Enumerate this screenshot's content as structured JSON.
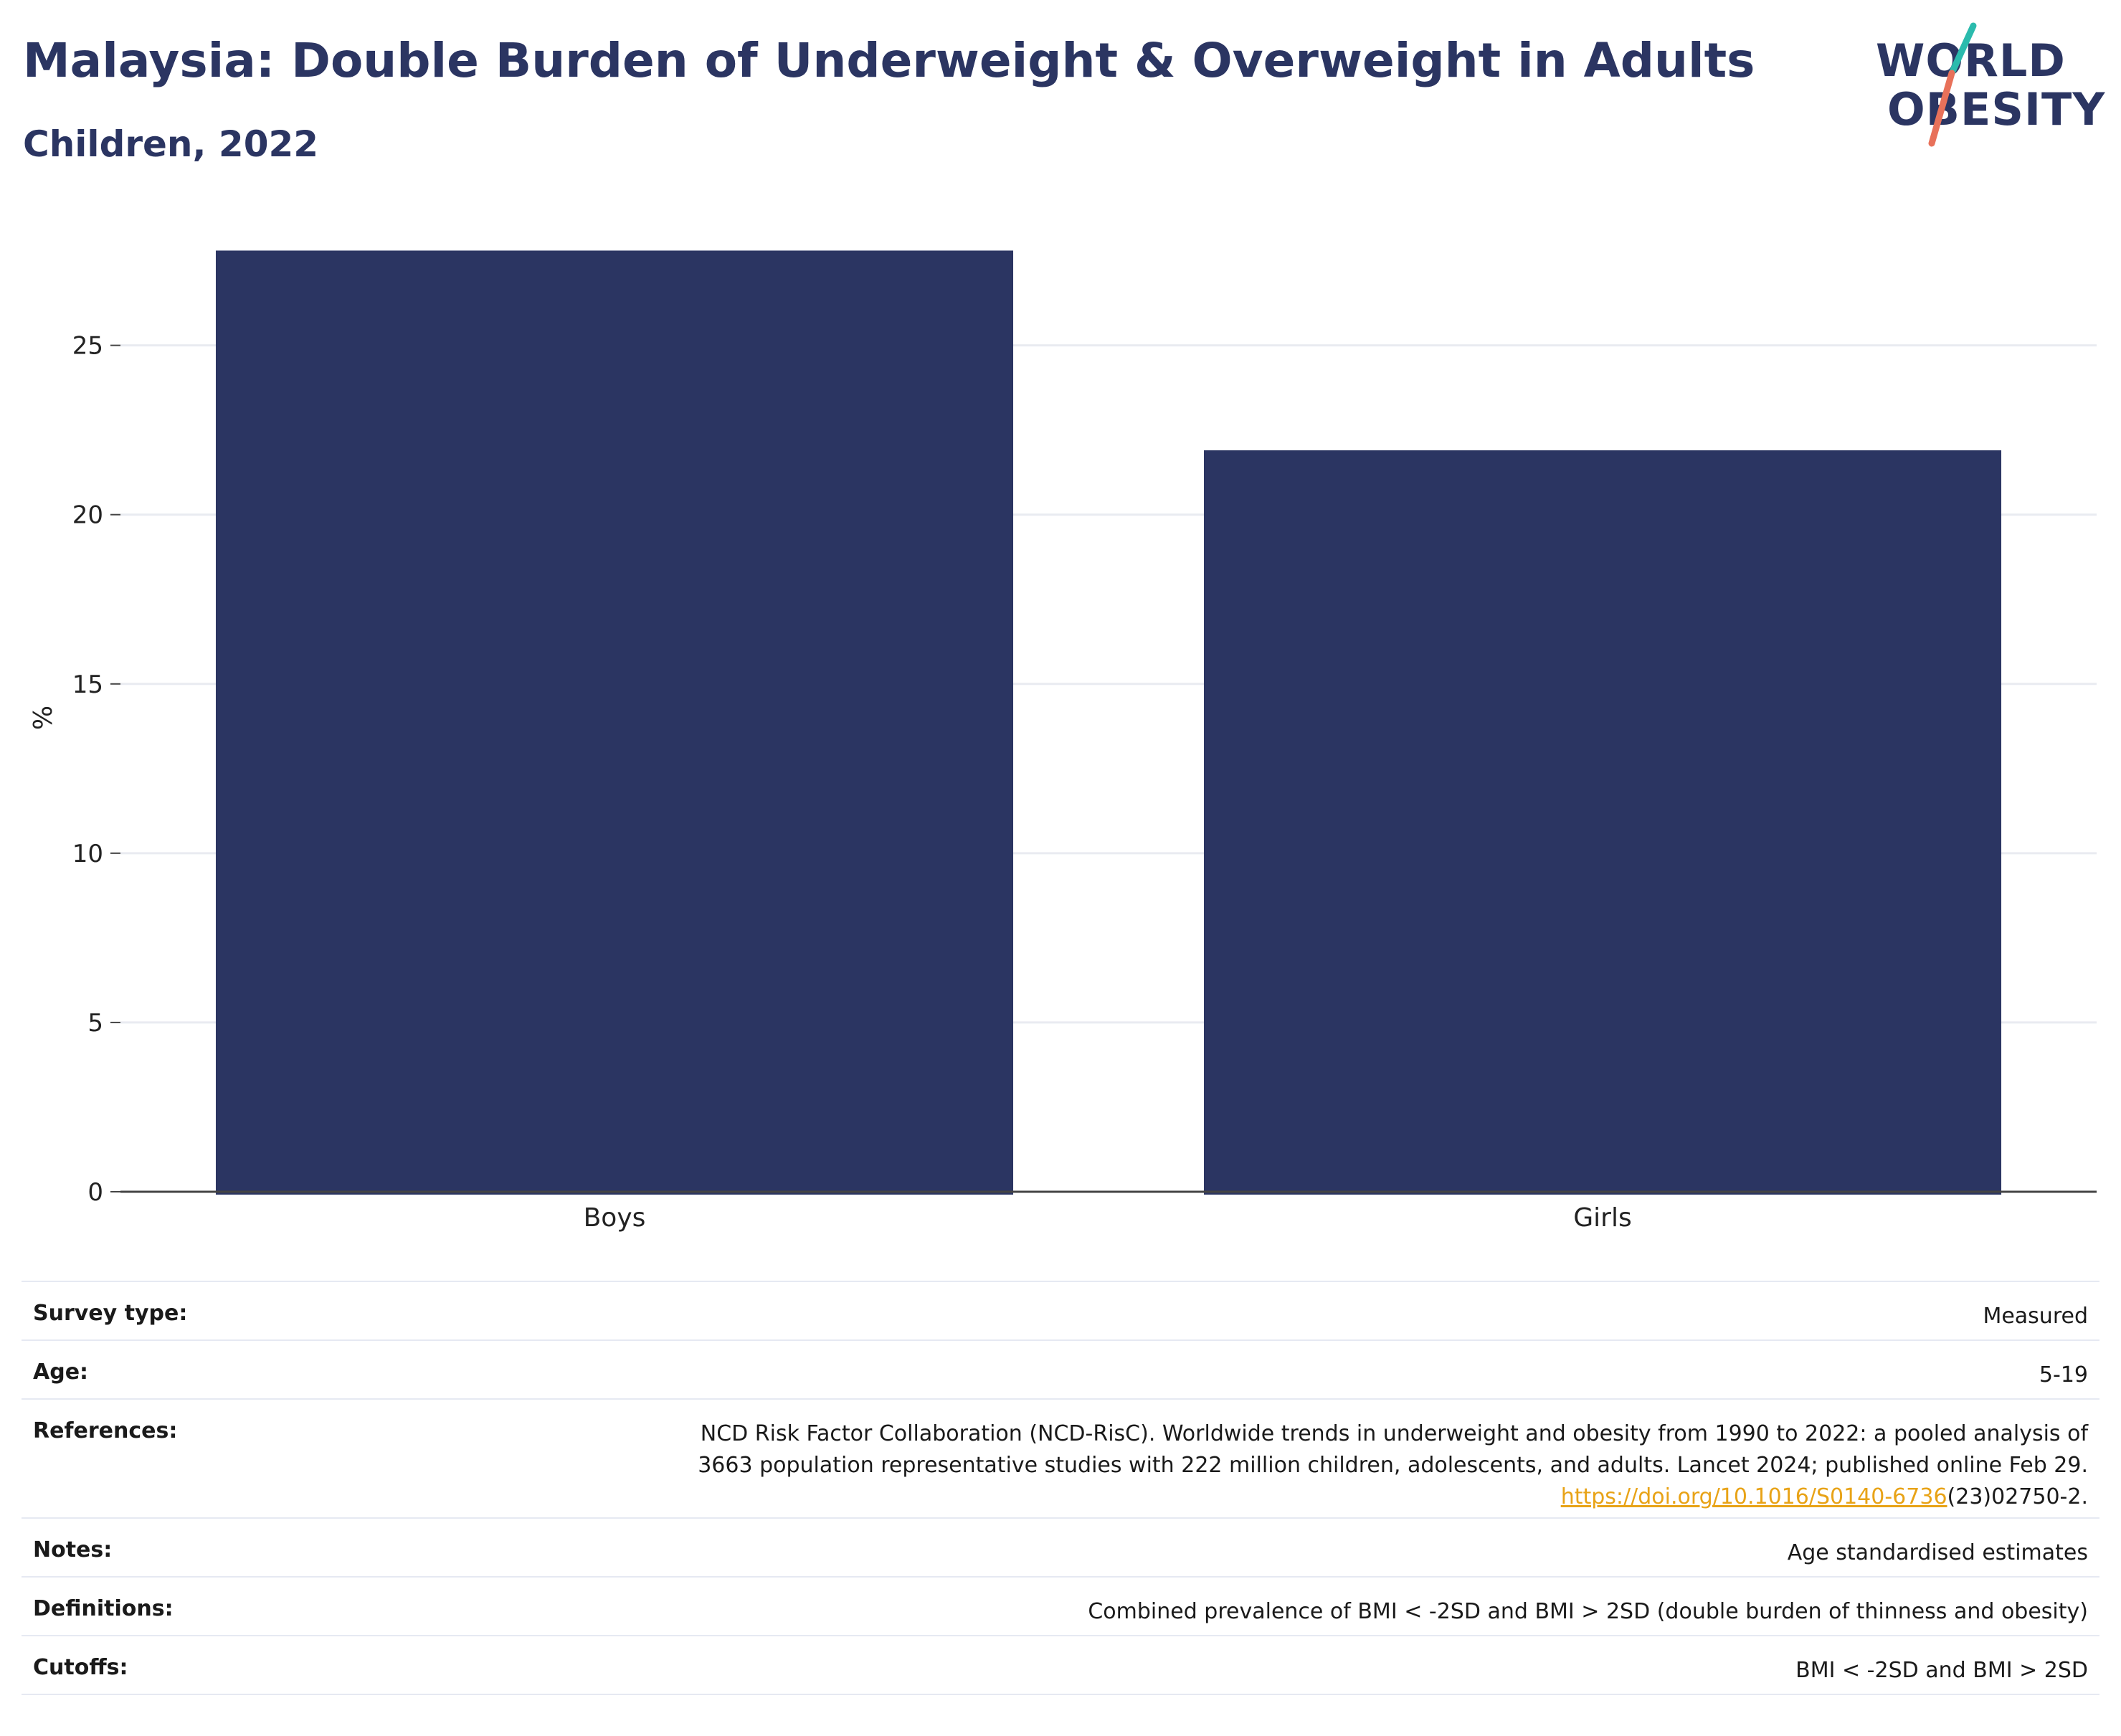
{
  "title": "Malaysia: Double Burden of Underweight & Overweight in Adults",
  "subtitle": "Children, 2022",
  "logo": {
    "line1": "WORLD",
    "line2": "OBESITY"
  },
  "colors": {
    "bar": "#2b3562",
    "text_dark": "#2b3562",
    "link": "#e8a317",
    "logo_teal": "#2bbbad",
    "logo_coral": "#e8715a"
  },
  "chart_data": {
    "type": "bar",
    "title": "",
    "ylabel": "%",
    "xlabel": "",
    "categories": [
      "Boys",
      "Girls"
    ],
    "values": [
      27.8,
      21.9
    ],
    "ylim": [
      0,
      28
    ],
    "yticks": [
      0,
      5,
      10,
      15,
      20,
      25
    ],
    "grid": true
  },
  "info": [
    {
      "key": "Survey type:",
      "value": "Measured"
    },
    {
      "key": "Age:",
      "value": "5-19"
    },
    {
      "key": "References:",
      "line1": "NCD Risk Factor Collaboration (NCD-RisC). Worldwide trends in underweight and obesity from 1990 to 2022: a pooled analysis of",
      "line2": "3663 population representative studies with 222 million children, adolescents, and adults. Lancet 2024; published online Feb 29.",
      "link": "https://doi.org/10.1016/S0140-6736",
      "link_tail": "(23)02750-2."
    },
    {
      "key": "Notes:",
      "value": "Age standardised estimates"
    },
    {
      "key": "Definitions:",
      "value": "Combined prevalence of BMI < -2SD and BMI > 2SD (double burden of thinness and obesity)"
    },
    {
      "key": "Cutoffs:",
      "value": "BMI < -2SD and BMI > 2SD"
    }
  ]
}
